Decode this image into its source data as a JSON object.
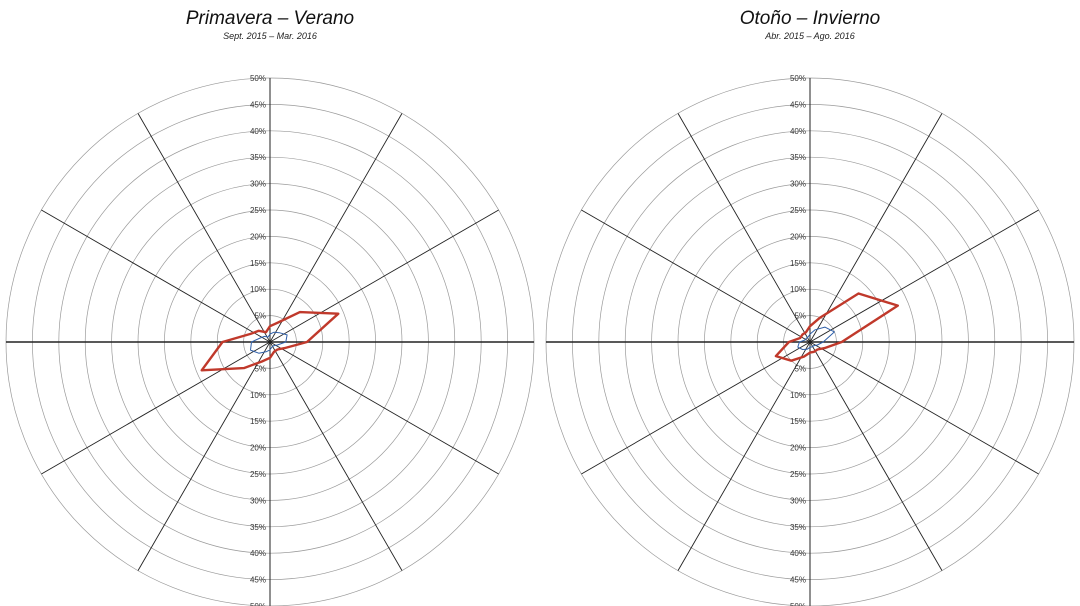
{
  "charts": [
    {
      "title": "Primavera – Verano",
      "subtitle": "Sept. 2015 – Mar. 2016"
    },
    {
      "title": "Otoño – Invierno",
      "subtitle": "Abr. 2015 – Ago. 2016"
    }
  ],
  "colors": {
    "grid": "#9a9a9a",
    "spoke": "#222222",
    "outer_series": "#c0392b",
    "inner_series": "#2f5fa8",
    "tick_text": "#333333"
  },
  "chart_data": [
    {
      "type": "radar",
      "title": "Primavera – Verano",
      "subtitle": "Sept. 2015 – Mar. 2016",
      "directions": 16,
      "start_direction": "N",
      "rlim": [
        0,
        50
      ],
      "rticks": [
        "50%",
        "45%",
        "40%",
        "35%",
        "30%",
        "25%",
        "20%",
        "15%",
        "10%",
        "5%",
        "0%",
        "5%",
        "10%",
        "15%",
        "20%",
        "25%",
        "30%",
        "35%",
        "40%",
        "45%",
        "50%"
      ],
      "grid": true,
      "series": [
        {
          "values": [
            1.5,
            2,
            2.5,
            3.5,
            3,
            1.5,
            1,
            1,
            1.5,
            2,
            3,
            4,
            3.5,
            2,
            1.5,
            1
          ]
        },
        {
          "values": [
            3,
            4,
            8,
            14,
            7,
            3,
            2,
            2,
            3,
            4,
            7,
            14,
            9,
            4,
            3,
            2
          ]
        }
      ]
    },
    {
      "type": "radar",
      "title": "Otoño – Invierno",
      "subtitle": "Abr. 2015 – Ago. 2016",
      "directions": 16,
      "start_direction": "N",
      "rlim": [
        0,
        50
      ],
      "rticks": [
        "50%",
        "45%",
        "40%",
        "35%",
        "30%",
        "25%",
        "20%",
        "15%",
        "10%",
        "5%",
        "0%",
        "5%",
        "10%",
        "15%",
        "20%",
        "25%",
        "30%",
        "35%",
        "40%",
        "45%",
        "50%"
      ],
      "grid": true,
      "series": [
        {
          "values": [
            1.5,
            2.5,
            4,
            5,
            2.5,
            1.5,
            1,
            1,
            1,
            1.5,
            2,
            2.5,
            2,
            1,
            1,
            1
          ]
        },
        {
          "values": [
            3,
            5,
            13,
            18,
            6,
            3,
            2,
            2,
            2,
            3,
            5,
            7,
            4,
            2,
            2,
            2
          ]
        }
      ]
    }
  ]
}
